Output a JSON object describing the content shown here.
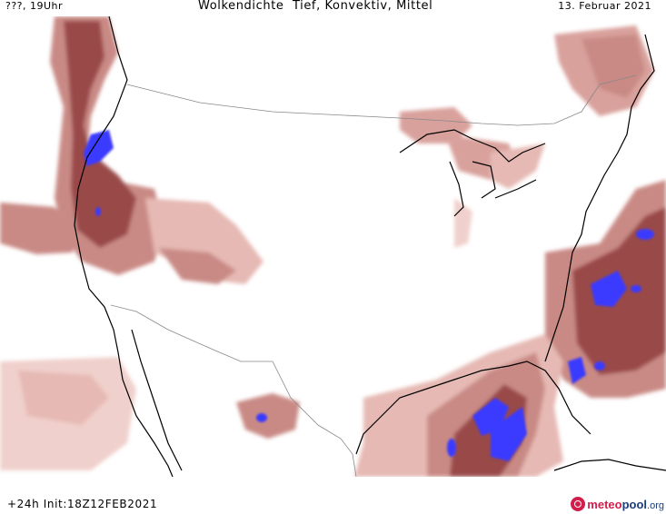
{
  "header": {
    "left": "???, 19Uhr",
    "title": "Wolkendichte  Tief, Konvektiv, Mittel",
    "right": "13. Februar 2021"
  },
  "footer": {
    "run": "+24h  Init:18Z12FEB2021",
    "logo_meteo": "meteo",
    "logo_pool": "pool",
    "logo_org": ".org"
  },
  "colors": {
    "cloud_light": "#f0d0cc",
    "cloud_mid": "#c98a85",
    "cloud_dark": "#9a4a48",
    "cloud_max": "#3a3aff",
    "coast": "#000000",
    "border": "#888888"
  }
}
